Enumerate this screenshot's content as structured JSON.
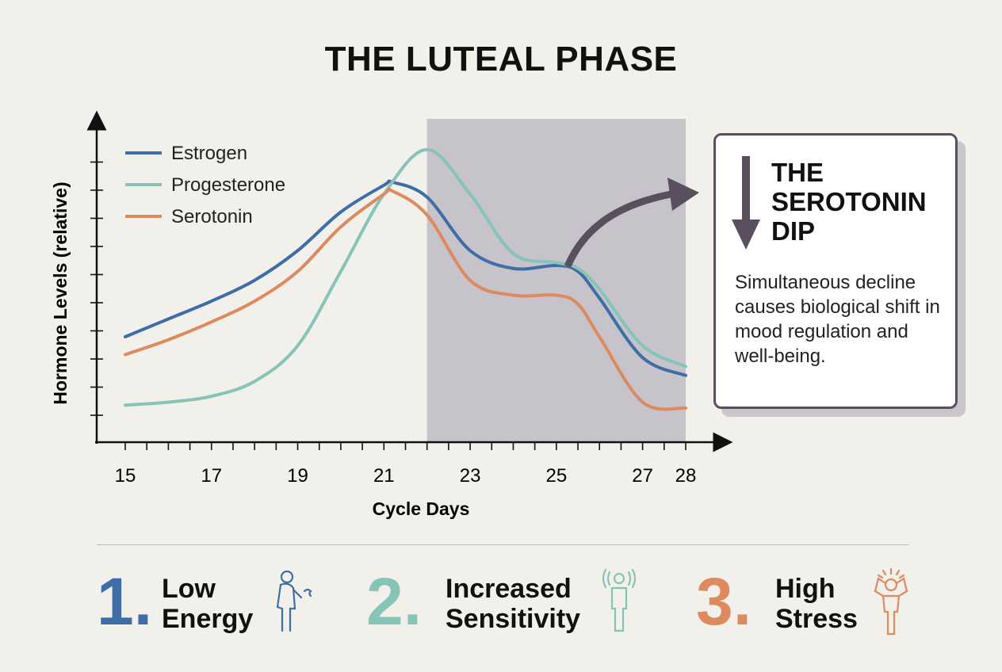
{
  "title": "THE LUTEAL PHASE",
  "chart_data": {
    "type": "line",
    "xlabel": "Cycle Days",
    "ylabel": "Hormone Levels (relative)",
    "xlim": [
      15,
      28
    ],
    "ylim": [
      0,
      10
    ],
    "x_ticks": [
      15,
      17,
      19,
      21,
      23,
      25,
      27,
      28
    ],
    "shaded_region": [
      22,
      28
    ],
    "legend": "top-left",
    "series": [
      {
        "name": "Estrogen",
        "color": "#3f6ea6",
        "x": [
          15,
          16,
          17,
          18,
          19,
          20,
          21,
          21.2,
          22,
          23,
          24,
          25,
          25.5,
          26,
          27,
          28
        ],
        "y": [
          3.2,
          3.8,
          4.4,
          5.1,
          6.1,
          7.4,
          8.3,
          8.4,
          7.9,
          6.1,
          5.5,
          5.6,
          5.4,
          4.5,
          2.5,
          1.9
        ]
      },
      {
        "name": "Progesterone",
        "color": "#86c4b8",
        "x": [
          15,
          16,
          17,
          18,
          19,
          20,
          21,
          22,
          23,
          24,
          25,
          25.5,
          26,
          27,
          28
        ],
        "y": [
          0.9,
          1.0,
          1.2,
          1.7,
          2.9,
          5.4,
          8.0,
          9.5,
          8.0,
          6.0,
          5.7,
          5.5,
          4.8,
          2.9,
          2.2
        ]
      },
      {
        "name": "Serotonin",
        "color": "#dd8a5e",
        "x": [
          15,
          16,
          17,
          18,
          19,
          20,
          21,
          21.2,
          22,
          23,
          24,
          25,
          25.5,
          26,
          27,
          28
        ],
        "y": [
          2.6,
          3.1,
          3.7,
          4.4,
          5.4,
          6.9,
          8.0,
          8.1,
          7.3,
          5.1,
          4.6,
          4.6,
          4.3,
          3.2,
          1.0,
          0.8
        ]
      }
    ]
  },
  "callout": {
    "title": "THE SEROTONIN DIP",
    "text": "Simultaneous decline causes biological shift in mood regulation and well-being."
  },
  "effects": [
    {
      "number": "1.",
      "line1": "Low",
      "line2": "Energy",
      "color": "#3f6ea6",
      "icon": "tired-person-icon"
    },
    {
      "number": "2.",
      "line1": "Increased",
      "line2": "Sensitivity",
      "color": "#86c4b8",
      "icon": "sensitive-person-icon"
    },
    {
      "number": "3.",
      "line1": "High",
      "line2": "Stress",
      "color": "#dd8a5e",
      "icon": "stressed-person-icon"
    }
  ],
  "colors": {
    "background": "#f1f0eb",
    "shade": "#c6c3cb",
    "arrow": "#5a4f5f"
  }
}
